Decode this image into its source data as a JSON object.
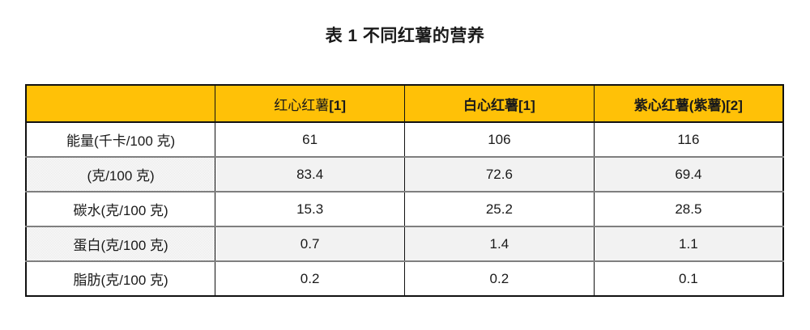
{
  "title": "表 1 不同红薯的营养",
  "colors": {
    "header_bg": "#FFC107",
    "shaded_row_bg": "#F1F1F1",
    "border_black": "#111111",
    "border_gray": "#7F7F7F",
    "text": "#1A1A1A"
  },
  "chart_data": {
    "type": "table",
    "title": "表 1 不同红薯的营养",
    "columns": [
      {
        "text": "",
        "ref": "",
        "bold": false
      },
      {
        "text": "红心红薯",
        "ref": "[1]",
        "bold": false
      },
      {
        "text": "白心红薯",
        "ref": "[1]",
        "bold": true
      },
      {
        "text": "紫心红薯(紫薯)",
        "ref": "[2]",
        "bold": true
      }
    ],
    "rows": [
      {
        "label": "能量(千卡/100 克)",
        "values": [
          "61",
          "106",
          "116"
        ],
        "shaded": false
      },
      {
        "label": "(克/100 克)",
        "values": [
          "83.4",
          "72.6",
          "69.4"
        ],
        "shaded": true
      },
      {
        "label": "碳水(克/100 克)",
        "values": [
          "15.3",
          "25.2",
          "28.5"
        ],
        "shaded": false
      },
      {
        "label": "蛋白(克/100 克)",
        "values": [
          "0.7",
          "1.4",
          "1.1"
        ],
        "shaded": true
      },
      {
        "label": "脂肪(克/100 克)",
        "values": [
          "0.2",
          "0.2",
          "0.1"
        ],
        "shaded": false
      }
    ]
  }
}
